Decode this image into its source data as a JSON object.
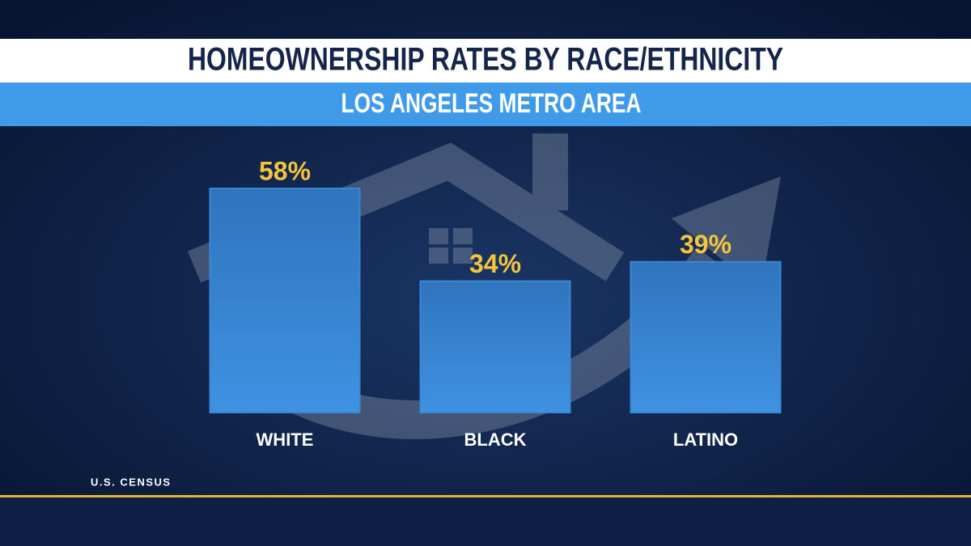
{
  "chart_data": {
    "type": "bar",
    "title": "HOMEOWNERSHIP RATES BY RACE/ETHNICITY",
    "subtitle": "LOS ANGELES METRO AREA",
    "categories": [
      "WHITE",
      "BLACK",
      "LATINO"
    ],
    "values": [
      58,
      34,
      39
    ],
    "value_labels": [
      "58%",
      "34%",
      "39%"
    ],
    "color": "#3a88d4",
    "value_label_color": "#f4c43c",
    "source": "U.S. CENSUS"
  }
}
